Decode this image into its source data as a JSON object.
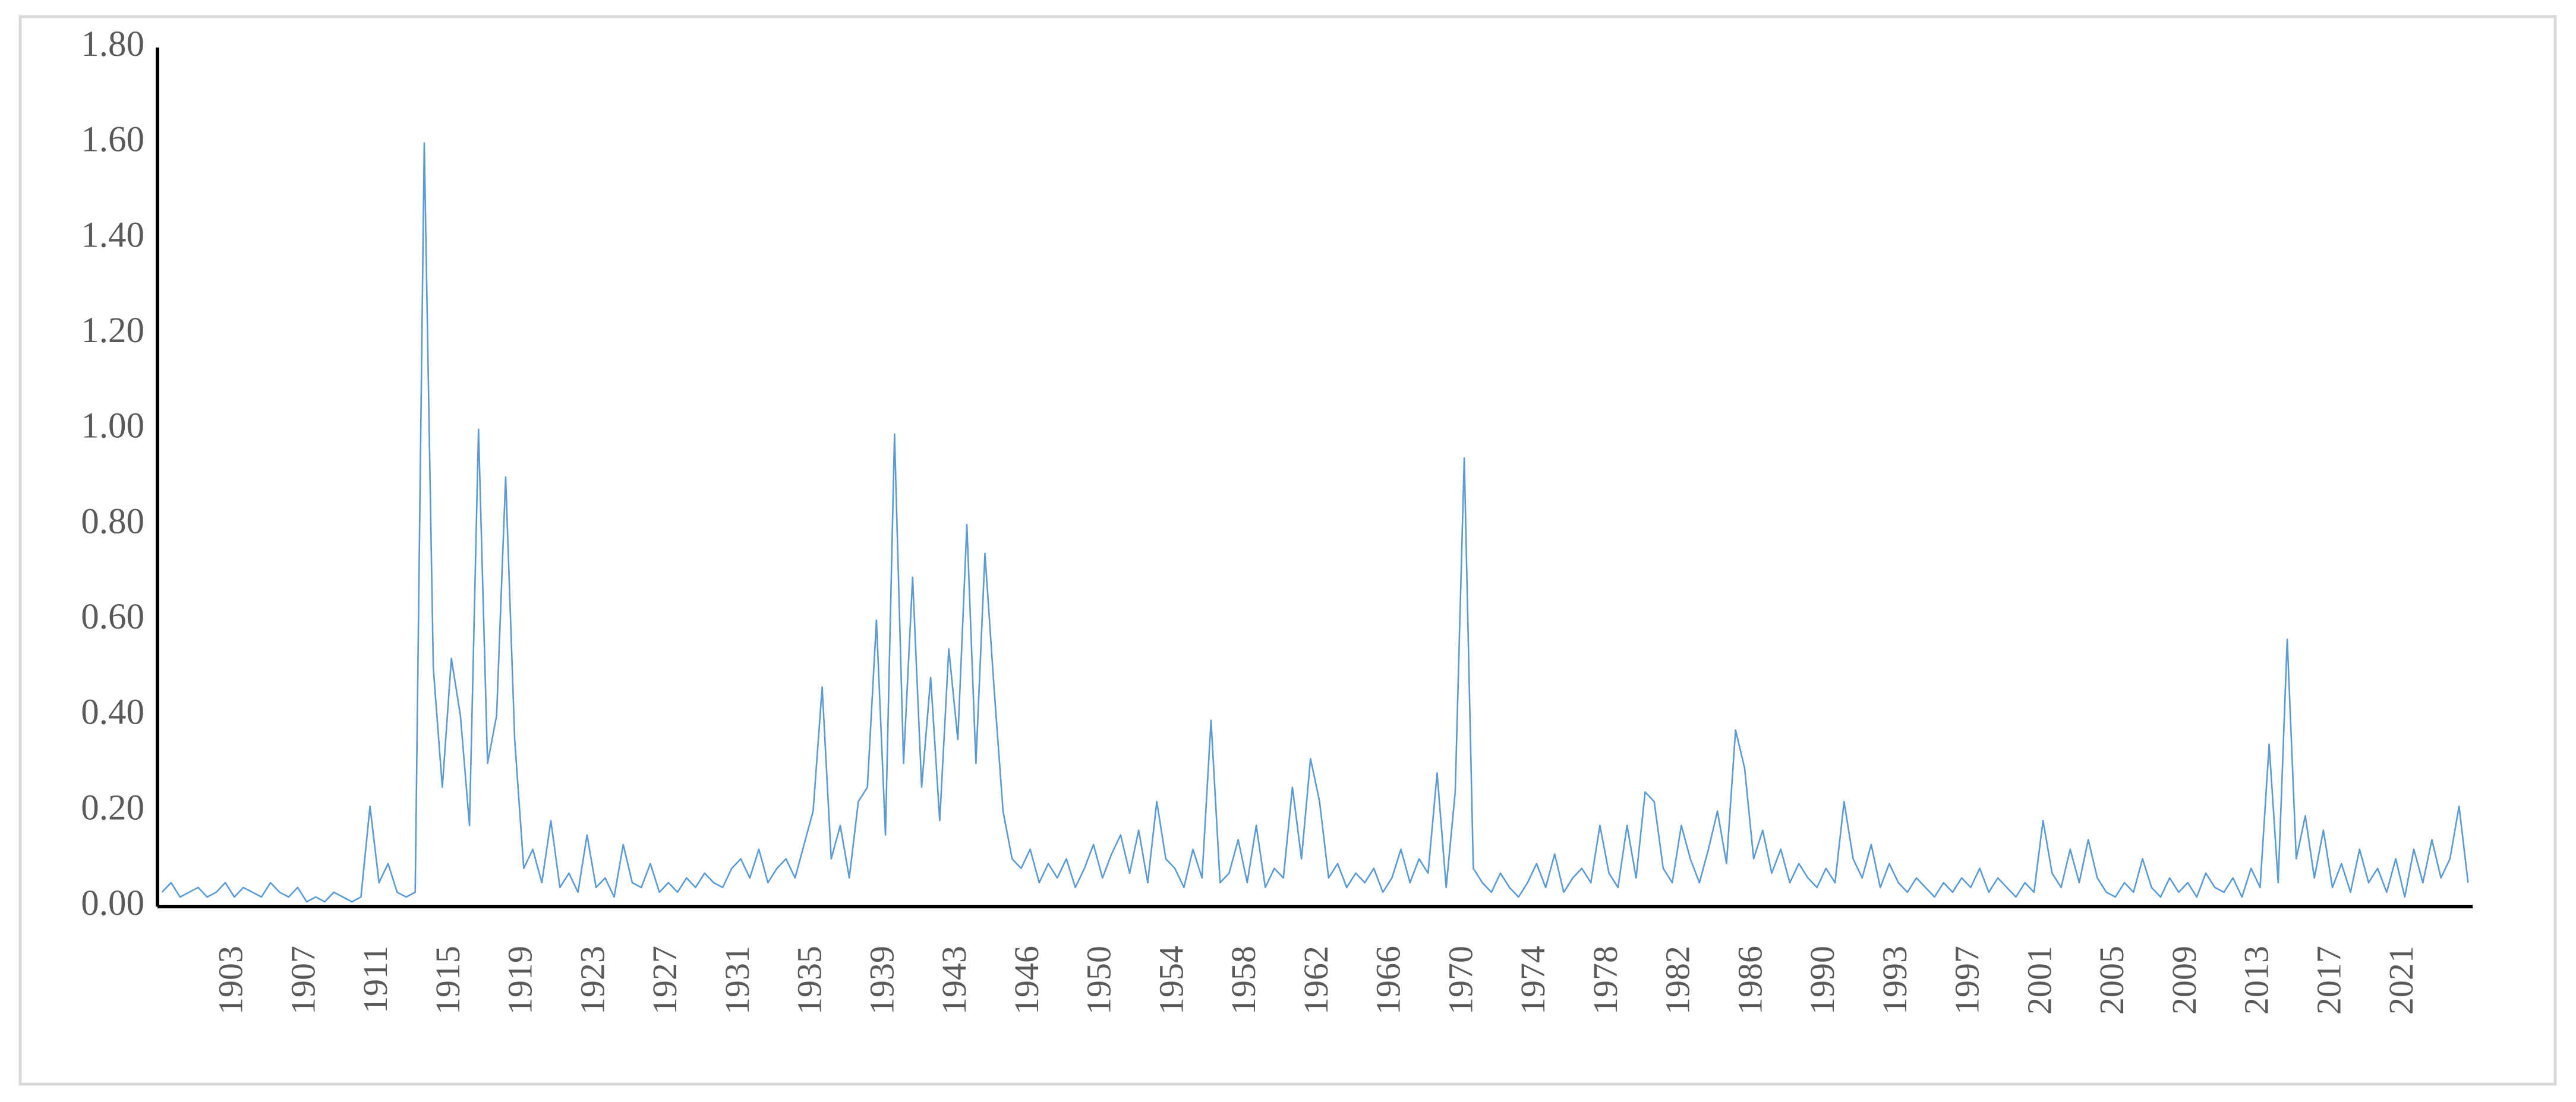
{
  "chart_data": {
    "type": "line",
    "categories": [
      null,
      null,
      null,
      null,
      null,
      null,
      null,
      null,
      "1903",
      null,
      null,
      null,
      null,
      null,
      null,
      null,
      "1907",
      null,
      null,
      null,
      null,
      null,
      null,
      null,
      "1911",
      null,
      null,
      null,
      null,
      null,
      null,
      null,
      "1915",
      null,
      null,
      null,
      null,
      null,
      null,
      null,
      "1919",
      null,
      null,
      null,
      null,
      null,
      null,
      null,
      "1923",
      null,
      null,
      null,
      null,
      null,
      null,
      null,
      "1927",
      null,
      null,
      null,
      null,
      null,
      null,
      null,
      "1931",
      null,
      null,
      null,
      null,
      null,
      null,
      null,
      "1935",
      null,
      null,
      null,
      null,
      null,
      null,
      null,
      "1939",
      null,
      null,
      null,
      null,
      null,
      null,
      null,
      "1943",
      null,
      null,
      null,
      null,
      null,
      null,
      null,
      "1946",
      null,
      null,
      null,
      null,
      null,
      null,
      null,
      "1950",
      null,
      null,
      null,
      null,
      null,
      null,
      null,
      "1954",
      null,
      null,
      null,
      null,
      null,
      null,
      null,
      "1958",
      null,
      null,
      null,
      null,
      null,
      null,
      null,
      "1962",
      null,
      null,
      null,
      null,
      null,
      null,
      null,
      "1966",
      null,
      null,
      null,
      null,
      null,
      null,
      null,
      "1970",
      null,
      null,
      null,
      null,
      null,
      null,
      null,
      "1974",
      null,
      null,
      null,
      null,
      null,
      null,
      null,
      "1978",
      null,
      null,
      null,
      null,
      null,
      null,
      null,
      "1982",
      null,
      null,
      null,
      null,
      null,
      null,
      null,
      "1986",
      null,
      null,
      null,
      null,
      null,
      null,
      null,
      "1990",
      null,
      null,
      null,
      null,
      null,
      null,
      null,
      "1993",
      null,
      null,
      null,
      null,
      null,
      null,
      null,
      "1997",
      null,
      null,
      null,
      null,
      null,
      null,
      null,
      "2001",
      null,
      null,
      null,
      null,
      null,
      null,
      null,
      "2005",
      null,
      null,
      null,
      null,
      null,
      null,
      null,
      "2009",
      null,
      null,
      null,
      null,
      null,
      null,
      null,
      "2013",
      null,
      null,
      null,
      null,
      null,
      null,
      null,
      "2017",
      null,
      null,
      null,
      null,
      null,
      null,
      null,
      "2021",
      null,
      null,
      null,
      null,
      null,
      null,
      null
    ],
    "values": [
      0.03,
      0.05,
      0.02,
      0.03,
      0.04,
      0.02,
      0.03,
      0.05,
      0.02,
      0.04,
      0.03,
      0.02,
      0.05,
      0.03,
      0.02,
      0.04,
      0.01,
      0.02,
      0.01,
      0.03,
      0.02,
      0.01,
      0.02,
      0.21,
      0.05,
      0.09,
      0.03,
      0.02,
      0.03,
      1.6,
      0.5,
      0.25,
      0.52,
      0.4,
      0.17,
      1.0,
      0.3,
      0.4,
      0.9,
      0.35,
      0.08,
      0.12,
      0.05,
      0.18,
      0.04,
      0.07,
      0.03,
      0.15,
      0.04,
      0.06,
      0.02,
      0.13,
      0.05,
      0.04,
      0.09,
      0.03,
      0.05,
      0.03,
      0.06,
      0.04,
      0.07,
      0.05,
      0.04,
      0.08,
      0.1,
      0.06,
      0.12,
      0.05,
      0.08,
      0.1,
      0.06,
      0.13,
      0.2,
      0.46,
      0.1,
      0.17,
      0.06,
      0.22,
      0.25,
      0.6,
      0.15,
      0.99,
      0.3,
      0.69,
      0.25,
      0.48,
      0.18,
      0.54,
      0.35,
      0.8,
      0.3,
      0.74,
      0.46,
      0.2,
      0.1,
      0.08,
      0.12,
      0.05,
      0.09,
      0.06,
      0.1,
      0.04,
      0.08,
      0.13,
      0.06,
      0.11,
      0.15,
      0.07,
      0.16,
      0.05,
      0.22,
      0.1,
      0.08,
      0.04,
      0.12,
      0.06,
      0.39,
      0.05,
      0.07,
      0.14,
      0.05,
      0.17,
      0.04,
      0.08,
      0.06,
      0.25,
      0.1,
      0.31,
      0.22,
      0.06,
      0.09,
      0.04,
      0.07,
      0.05,
      0.08,
      0.03,
      0.06,
      0.12,
      0.05,
      0.1,
      0.07,
      0.28,
      0.04,
      0.24,
      0.94,
      0.08,
      0.05,
      0.03,
      0.07,
      0.04,
      0.02,
      0.05,
      0.09,
      0.04,
      0.11,
      0.03,
      0.06,
      0.08,
      0.05,
      0.17,
      0.07,
      0.04,
      0.17,
      0.06,
      0.24,
      0.22,
      0.08,
      0.05,
      0.17,
      0.1,
      0.05,
      0.12,
      0.2,
      0.09,
      0.37,
      0.29,
      0.1,
      0.16,
      0.07,
      0.12,
      0.05,
      0.09,
      0.06,
      0.04,
      0.08,
      0.05,
      0.22,
      0.1,
      0.06,
      0.13,
      0.04,
      0.09,
      0.05,
      0.03,
      0.06,
      0.04,
      0.02,
      0.05,
      0.03,
      0.06,
      0.04,
      0.08,
      0.03,
      0.06,
      0.04,
      0.02,
      0.05,
      0.03,
      0.18,
      0.07,
      0.04,
      0.12,
      0.05,
      0.14,
      0.06,
      0.03,
      0.02,
      0.05,
      0.03,
      0.1,
      0.04,
      0.02,
      0.06,
      0.03,
      0.05,
      0.02,
      0.07,
      0.04,
      0.03,
      0.06,
      0.02,
      0.08,
      0.04,
      0.34,
      0.05,
      0.56,
      0.1,
      0.19,
      0.06,
      0.16,
      0.04,
      0.09,
      0.03,
      0.12,
      0.05,
      0.08,
      0.03,
      0.1,
      0.02,
      0.12,
      0.05,
      0.14,
      0.06,
      0.1,
      0.21,
      0.05
    ],
    "color": "#5b9bd5",
    "ylim": [
      0,
      1.8
    ],
    "yticks": [
      {
        "value": 0,
        "label": "0.00"
      },
      {
        "value": 0.2,
        "label": "0.20"
      },
      {
        "value": 0.4,
        "label": "0.40"
      },
      {
        "value": 0.6,
        "label": "0.60"
      },
      {
        "value": 0.8,
        "label": "0.80"
      },
      {
        "value": 1.0,
        "label": "1.00"
      },
      {
        "value": 1.2,
        "label": "1.20"
      },
      {
        "value": 1.4,
        "label": "1.40"
      },
      {
        "value": 1.6,
        "label": "1.60"
      },
      {
        "value": 1.8,
        "label": "1.80"
      }
    ],
    "grid": false
  }
}
